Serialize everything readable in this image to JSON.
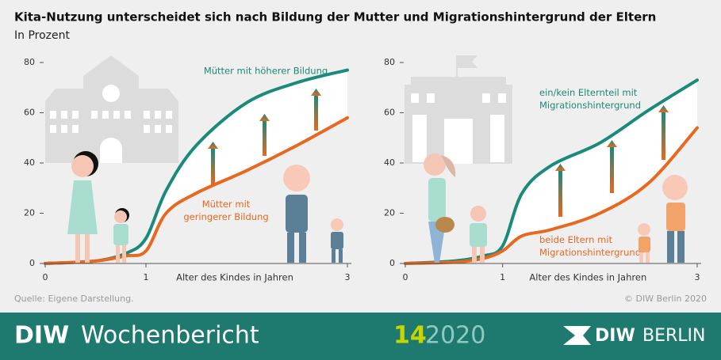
{
  "title": "Kita-Nutzung unterscheidet sich nach Bildung der Mutter und Migrationshintergrund der Eltern",
  "subtitle": "In Prozent",
  "source": "Quelle: Eigene Darstellung.",
  "copyright": "© DIW Berlin 2020",
  "footer": {
    "brand": "DIW",
    "publication": "Wochenbericht",
    "issue": "14",
    "year": "2020",
    "logo_left": "DIW",
    "logo_right": "BERLIN"
  },
  "chart_data": [
    {
      "type": "line",
      "xlabel": "Alter des Kindes in Jahren",
      "x": [
        0,
        0.5,
        0.8,
        1,
        1.2,
        1.5,
        2,
        2.5,
        3
      ],
      "xlim": [
        0,
        3
      ],
      "xticks": [
        0,
        1,
        3
      ],
      "ylim": [
        0,
        80
      ],
      "yticks": [
        0,
        20,
        40,
        60,
        80
      ],
      "series": [
        {
          "name": "Mütter mit höherer Bildung",
          "color": "#1a8a7a",
          "values": [
            0,
            1,
            4,
            10,
            29,
            47,
            64,
            72,
            77
          ]
        },
        {
          "name": "Mütter mit\ngeringerer Bildung",
          "color": "#e8681f",
          "values": [
            0,
            1,
            3,
            5,
            20,
            28,
            37,
            47,
            58
          ]
        }
      ]
    },
    {
      "type": "line",
      "xlabel": "Alter des Kindes in Jahren",
      "x": [
        0,
        0.5,
        0.8,
        1,
        1.2,
        1.5,
        2,
        2.5,
        3
      ],
      "xlim": [
        0,
        3
      ],
      "xticks": [
        0,
        1,
        3
      ],
      "ylim": [
        0,
        80
      ],
      "yticks": [
        0,
        20,
        40,
        60,
        80
      ],
      "series": [
        {
          "name": "ein/kein Elternteil mit\nMigrationshintergrund",
          "color": "#1a8a7a",
          "values": [
            0,
            1,
            3,
            7,
            28,
            39,
            48,
            61,
            73
          ]
        },
        {
          "name": "beide Eltern mit\nMigrationshintergrund",
          "color": "#e8681f",
          "values": [
            0,
            0.5,
            2,
            5,
            11,
            13.5,
            20,
            32,
            54
          ]
        }
      ]
    }
  ]
}
